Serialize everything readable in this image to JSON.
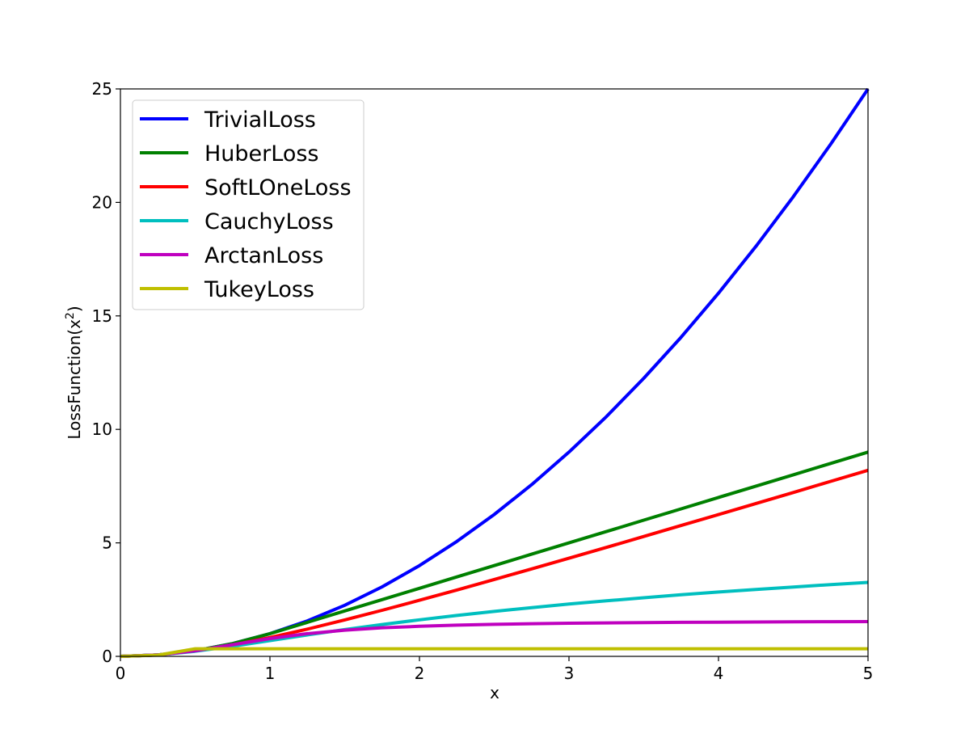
{
  "chart_data": {
    "type": "line",
    "title": "",
    "xlabel": "x",
    "ylabel_main": "LossFunction(x",
    "ylabel_sup": "2",
    "ylabel_close": ")",
    "xlim": [
      0,
      5
    ],
    "ylim": [
      0,
      25
    ],
    "xticks": [
      0,
      1,
      2,
      3,
      4,
      5
    ],
    "yticks": [
      0,
      5,
      10,
      15,
      20,
      25
    ],
    "grid": false,
    "legend_position": "top-left",
    "x": [
      0,
      0.25,
      0.5,
      0.75,
      1,
      1.25,
      1.5,
      1.75,
      2,
      2.25,
      2.5,
      2.75,
      3,
      3.25,
      3.5,
      3.75,
      4,
      4.25,
      4.5,
      4.75,
      5
    ],
    "series": [
      {
        "name": "TrivialLoss",
        "color": "#0000ff",
        "values": [
          0,
          0.063,
          0.25,
          0.563,
          1,
          1.563,
          2.25,
          3.063,
          4,
          5.063,
          6.25,
          7.563,
          9,
          10.563,
          12.25,
          14.063,
          16,
          18.063,
          20.25,
          22.563,
          25
        ]
      },
      {
        "name": "HuberLoss",
        "color": "#008000",
        "values": [
          0,
          0.063,
          0.25,
          0.563,
          1,
          1.5,
          2,
          2.5,
          3,
          3.5,
          4,
          4.5,
          5,
          5.5,
          6,
          6.5,
          7,
          7.5,
          8,
          8.5,
          9
        ]
      },
      {
        "name": "SoftLOneLoss",
        "color": "#ff0000",
        "values": [
          0,
          0.062,
          0.236,
          0.5,
          0.828,
          1.201,
          1.606,
          2.031,
          2.472,
          2.924,
          3.385,
          3.852,
          4.325,
          4.802,
          5.282,
          5.766,
          6.246,
          6.734,
          7.22,
          7.709,
          8.198
        ]
      },
      {
        "name": "CauchyLoss",
        "color": "#00bfbf",
        "values": [
          0,
          0.061,
          0.223,
          0.446,
          0.693,
          0.942,
          1.179,
          1.402,
          1.609,
          1.801,
          1.981,
          2.147,
          2.303,
          2.447,
          2.583,
          2.712,
          2.833,
          2.948,
          3.057,
          3.161,
          3.258
        ]
      },
      {
        "name": "ArctanLoss",
        "color": "#bf00bf",
        "values": [
          0,
          0.062,
          0.245,
          0.513,
          0.785,
          0.999,
          1.153,
          1.26,
          1.326,
          1.374,
          1.412,
          1.439,
          1.46,
          1.476,
          1.488,
          1.499,
          1.508,
          1.515,
          1.521,
          1.527,
          1.531
        ]
      },
      {
        "name": "TukeyLoss",
        "color": "#bfbf00",
        "values": [
          0,
          0.052,
          0.333,
          0.333,
          0.333,
          0.333,
          0.333,
          0.333,
          0.333,
          0.333,
          0.333,
          0.333,
          0.333,
          0.333,
          0.333,
          0.333,
          0.333,
          0.333,
          0.333,
          0.333,
          0.333
        ]
      }
    ]
  }
}
